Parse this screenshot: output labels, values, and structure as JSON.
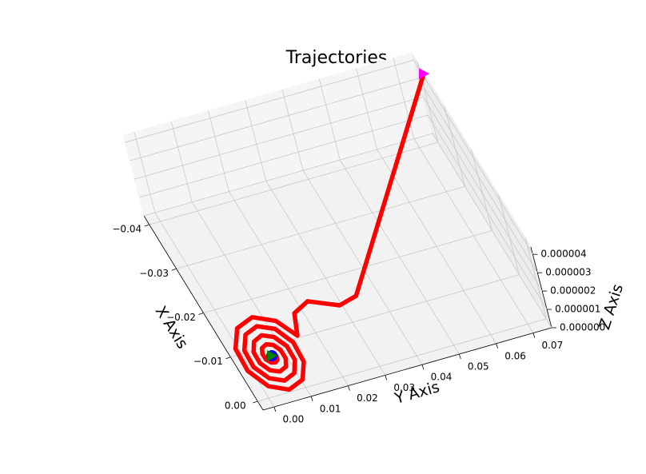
{
  "chart_data": {
    "type": "line3d",
    "title": "Trajectories",
    "xlabel": "X Axis",
    "ylabel": "Y Axis",
    "zlabel": "Z Axis",
    "xlim": [
      -0.042,
      0.002
    ],
    "ylim": [
      -0.003,
      0.075
    ],
    "zlim": [
      0,
      4.4e-06
    ],
    "xticks": [
      {
        "value": -0.04,
        "label": "−0.04"
      },
      {
        "value": -0.03,
        "label": "−0.03"
      },
      {
        "value": -0.02,
        "label": "−0.02"
      },
      {
        "value": -0.01,
        "label": "−0.01"
      },
      {
        "value": 0,
        "label": "0.00"
      }
    ],
    "yticks": [
      {
        "value": 0,
        "label": "0.00"
      },
      0.01,
      0.02,
      0.03,
      0.04,
      0.05,
      0.06,
      0.07
    ],
    "zticks": [
      {
        "value": 0,
        "label": "0.000000"
      },
      {
        "value": 1e-06,
        "label": "0.000001"
      },
      {
        "value": 2e-06,
        "label": "0.000002"
      },
      {
        "value": 3e-06,
        "label": "0.000003"
      },
      {
        "value": 4e-06,
        "label": "0.000004"
      }
    ],
    "grid": true,
    "series": [
      {
        "color": "#ff0000",
        "marker": "line",
        "x": [
          -0.008,
          -0.0082,
          -0.0076,
          -0.0069,
          -0.0065,
          -0.0067,
          -0.0076,
          -0.0089,
          -0.01,
          -0.0105,
          -0.01,
          -0.0086,
          -0.0067,
          -0.0051,
          -0.0045,
          -0.0053,
          -0.0072,
          -0.0097,
          -0.0117,
          -0.0125,
          -0.0115,
          -0.009,
          -0.0059,
          -0.0034,
          -0.0025,
          -0.0038,
          -0.0068,
          -0.0105,
          -0.0135,
          -0.0145,
          -0.013,
          -0.0094,
          -0.0051,
          -0.0017,
          -0.0005,
          -0.0023,
          -0.0064,
          -0.0113,
          -0.0152,
          -0.0165,
          -0.0145,
          -0.0097,
          -0.0138,
          -0.015,
          -0.0117,
          -0.0111,
          -0.0373
        ],
        "y": [
          0.0067,
          0.0076,
          0.0077,
          0.0074,
          0.0066,
          0.0056,
          0.0048,
          0.0048,
          0.0055,
          0.007,
          0.0085,
          0.0095,
          0.0095,
          0.0084,
          0.0063,
          0.0042,
          0.0029,
          0.003,
          0.0046,
          0.0072,
          0.0098,
          0.0115,
          0.0114,
          0.0094,
          0.0061,
          0.0029,
          0.0009,
          0.0011,
          0.0036,
          0.0074,
          0.0112,
          0.0135,
          0.0132,
          0.0104,
          0.0059,
          0.0016,
          -0.001,
          -0.0007,
          0.0026,
          0.0076,
          0.0125,
          0.0151,
          0.0174,
          0.022,
          0.0285,
          0.033,
          0.0748
        ],
        "z": [
          0,
          0,
          0,
          0,
          0,
          0,
          0,
          0,
          0,
          0,
          0,
          0,
          0,
          0,
          0,
          0,
          0,
          0,
          0,
          0,
          0,
          0,
          0,
          0,
          0,
          0,
          0,
          0,
          0,
          0,
          0,
          0,
          0,
          0,
          0,
          0,
          0,
          0,
          0,
          0,
          0,
          2e-07,
          3e-07,
          4e-07,
          6e-07,
          1e-06,
          4.4e-06
        ]
      },
      {
        "color": "#0000ff",
        "marker": "circle",
        "x": [
          -0.008
        ],
        "y": [
          0.0067
        ],
        "z": [
          0
        ]
      },
      {
        "color": "#008000",
        "marker": "triangle-right",
        "x": [
          -0.008
        ],
        "y": [
          0.0067
        ],
        "z": [
          0
        ]
      },
      {
        "color": "#ff00ff",
        "marker": "triangle-right",
        "x": [
          -0.0373
        ],
        "y": [
          0.0748
        ],
        "z": [
          4.4e-06
        ]
      }
    ]
  }
}
